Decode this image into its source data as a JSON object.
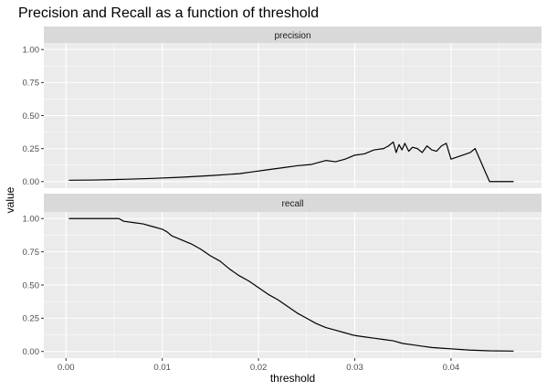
{
  "chart_data": {
    "type": "line",
    "title": "Precision and Recall as a function of threshold",
    "xlabel": "threshold",
    "ylabel": "value",
    "xlim": [
      -0.0023,
      0.0494
    ],
    "ylim": [
      -0.05,
      1.05
    ],
    "x_ticks": [
      0.0,
      0.01,
      0.02,
      0.03,
      0.04
    ],
    "x_tick_labels": [
      "0.00",
      "0.01",
      "0.02",
      "0.03",
      "0.04"
    ],
    "y_ticks": [
      0.0,
      0.25,
      0.5,
      0.75,
      1.0
    ],
    "y_tick_labels": [
      "0.00",
      "0.25",
      "0.50",
      "0.75",
      "1.00"
    ],
    "grid": true,
    "colors": {
      "panel_bg": "#ebebeb",
      "strip_bg": "#d9d9d9",
      "grid": "#ffffff",
      "line": "#000000",
      "tick_text": "#4d4d4d"
    },
    "panels": [
      {
        "strip_label": "precision",
        "x": [
          0.0003,
          0.003,
          0.006,
          0.009,
          0.012,
          0.015,
          0.018,
          0.0195,
          0.021,
          0.0225,
          0.024,
          0.0255,
          0.027,
          0.028,
          0.029,
          0.03,
          0.031,
          0.032,
          0.033,
          0.0335,
          0.034,
          0.0343,
          0.0346,
          0.0349,
          0.0352,
          0.0356,
          0.036,
          0.0365,
          0.037,
          0.0375,
          0.038,
          0.0385,
          0.039,
          0.0395,
          0.04,
          0.042,
          0.0425,
          0.044,
          0.0465
        ],
        "y": [
          0.01,
          0.012,
          0.017,
          0.024,
          0.033,
          0.045,
          0.06,
          0.075,
          0.09,
          0.105,
          0.12,
          0.13,
          0.16,
          0.15,
          0.17,
          0.2,
          0.21,
          0.24,
          0.25,
          0.27,
          0.3,
          0.22,
          0.28,
          0.24,
          0.29,
          0.23,
          0.26,
          0.25,
          0.22,
          0.27,
          0.24,
          0.23,
          0.27,
          0.29,
          0.17,
          0.22,
          0.25,
          0.0,
          0.0
        ]
      },
      {
        "strip_label": "recall",
        "x": [
          0.0003,
          0.0055,
          0.006,
          0.007,
          0.008,
          0.009,
          0.01,
          0.0105,
          0.011,
          0.012,
          0.013,
          0.014,
          0.015,
          0.016,
          0.017,
          0.018,
          0.019,
          0.02,
          0.021,
          0.022,
          0.023,
          0.024,
          0.025,
          0.026,
          0.027,
          0.028,
          0.029,
          0.03,
          0.031,
          0.032,
          0.033,
          0.034,
          0.035,
          0.036,
          0.037,
          0.038,
          0.039,
          0.04,
          0.042,
          0.044,
          0.0465
        ],
        "y": [
          1.0,
          1.0,
          0.98,
          0.97,
          0.96,
          0.94,
          0.92,
          0.9,
          0.87,
          0.84,
          0.81,
          0.77,
          0.72,
          0.68,
          0.62,
          0.57,
          0.53,
          0.48,
          0.43,
          0.39,
          0.34,
          0.29,
          0.25,
          0.21,
          0.18,
          0.16,
          0.14,
          0.12,
          0.11,
          0.1,
          0.09,
          0.08,
          0.06,
          0.05,
          0.04,
          0.03,
          0.025,
          0.02,
          0.01,
          0.005,
          0.003
        ]
      }
    ]
  }
}
